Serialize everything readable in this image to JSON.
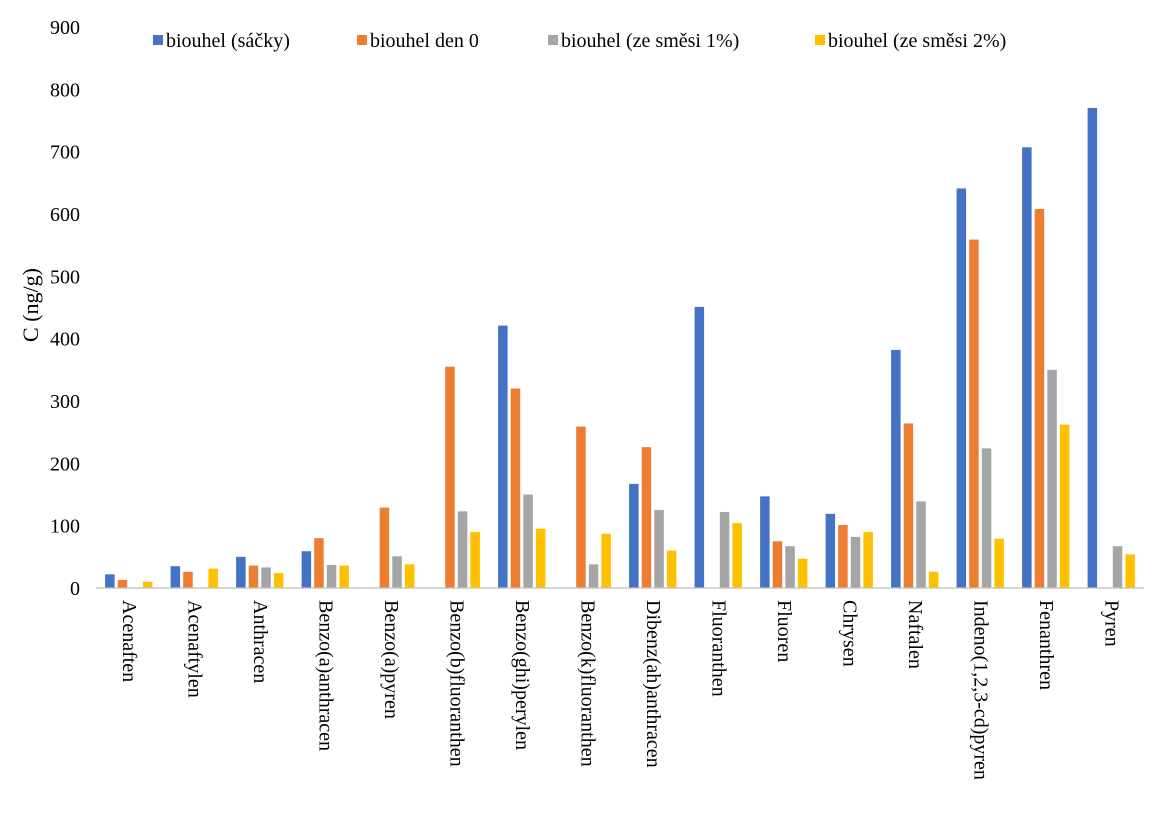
{
  "chart_data": {
    "type": "bar",
    "title": "",
    "xlabel": "",
    "ylabel": "C (ng/g)",
    "ylim": [
      0,
      900
    ],
    "yticks": [
      0,
      100,
      200,
      300,
      400,
      500,
      600,
      700,
      800,
      900
    ],
    "grid": false,
    "legend_position": "top",
    "categories": [
      "Acenaften",
      "Acenaftylen",
      "Anthracen",
      "Benzo(a)anthracen",
      "Benzo(a)pyren",
      "Benzo(b)fluoranthen",
      "Benzo(ghi)perylen",
      "Benzo(k)fluoranthen",
      "Dibenz(ah)anthracen",
      "Fluoranthen",
      "Fluoren",
      "Chrysen",
      "Naftalen",
      "Indeno(1,2,3-cd)pyren",
      "Fenanthren",
      "Pyren"
    ],
    "series": [
      {
        "name": "biouhel (sáčky)",
        "color": "#4472C4",
        "values": [
          22,
          35,
          50,
          59,
          0,
          0,
          421,
          0,
          167,
          451,
          147,
          119,
          382,
          641,
          707,
          770
        ]
      },
      {
        "name": "biouhel den 0",
        "color": "#ED7D31",
        "values": [
          13,
          26,
          36,
          80,
          129,
          355,
          320,
          259,
          226,
          0,
          75,
          101,
          264,
          559,
          608,
          0
        ]
      },
      {
        "name": "biouhel (ze směsi 1%)",
        "color": "#A5A5A5",
        "values": [
          0,
          0,
          33,
          37,
          51,
          123,
          150,
          38,
          125,
          122,
          67,
          82,
          139,
          224,
          350,
          67
        ]
      },
      {
        "name": "biouhel (ze směsi 2%)",
        "color": "#FFC000",
        "values": [
          10,
          31,
          24,
          36,
          38,
          90,
          95,
          87,
          60,
          104,
          47,
          90,
          26,
          79,
          262,
          54
        ]
      }
    ]
  }
}
